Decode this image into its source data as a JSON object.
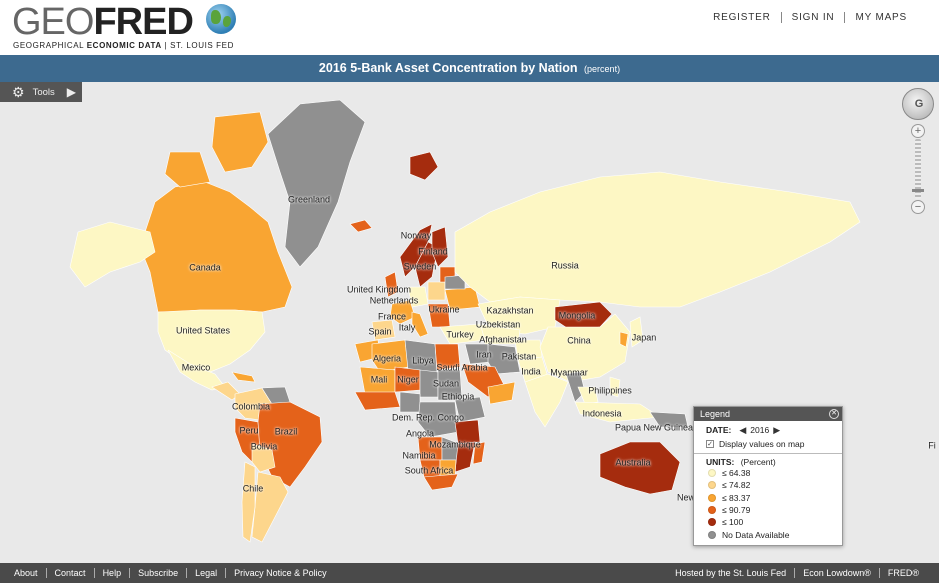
{
  "header": {
    "logo_geo": "GEO",
    "logo_fred": "FRED",
    "tagline_a": "GEOGRAPHICAL ",
    "tagline_b": "ECONOMIC DATA",
    "tagline_c": " | ST. LOUIS FED",
    "nav": [
      "REGISTER",
      "SIGN IN",
      "MY MAPS"
    ]
  },
  "title_bar": {
    "title": "2016 5-Bank Asset Concentration by Nation",
    "unit": "(percent)"
  },
  "toolbar": {
    "tools_label": "Tools"
  },
  "legend": {
    "title": "Legend",
    "date_label": "DATE:",
    "date_value": "2016",
    "display_values_label": "Display values on map",
    "display_values_checked": true,
    "units_label": "UNITS:",
    "units_value": "(Percent)",
    "classes": [
      {
        "label": "≤ 64.38",
        "color": "#fdf7c4"
      },
      {
        "label": "≤ 74.82",
        "color": "#fdd68c"
      },
      {
        "label": "≤ 83.37",
        "color": "#f9a532"
      },
      {
        "label": "≤ 90.79",
        "color": "#e4621a"
      },
      {
        "label": "≤ 100",
        "color": "#a52c0e"
      },
      {
        "label": "No Data Available",
        "color": "#909090"
      }
    ]
  },
  "map": {
    "colors": {
      "background": "#e9e9e9",
      "no_data": "#909090",
      "class1": "#fdf7c4",
      "class2": "#fdd68c",
      "class3": "#f9a532",
      "class4": "#e4621a",
      "class5": "#a52c0e"
    },
    "country_labels": [
      "Greenland",
      "Canada",
      "United States",
      "Mexico",
      "Colombia",
      "Peru",
      "Brazil",
      "Bolivia",
      "Chile",
      "Norway",
      "Finland",
      "Sweden",
      "United Kingdom",
      "Netherlands",
      "France",
      "Spain",
      "Italy",
      "Ukraine",
      "Russia",
      "Kazakhstan",
      "Mongolia",
      "Uzbekistan",
      "Turkey",
      "Afghanistan",
      "Iran",
      "Pakistan",
      "China",
      "Japan",
      "India",
      "Myanmar",
      "Philippines",
      "Indonesia",
      "Papua New Guinea",
      "Australia",
      "Algeria",
      "Libya",
      "Mali",
      "Niger",
      "Sudan",
      "Saudi Arabia",
      "Ethiopia",
      "Dem. Rep. Congo",
      "Angola",
      "Mozambique",
      "Namibia",
      "South Africa",
      "Fi",
      "New"
    ]
  },
  "footer": {
    "links": [
      "About",
      "Contact",
      "Help",
      "Subscribe",
      "Legal",
      "Privacy Notice & Policy"
    ],
    "links_right": [
      "Hosted by the St. Louis Fed",
      "Econ Lowdown®",
      "FRED®"
    ]
  }
}
